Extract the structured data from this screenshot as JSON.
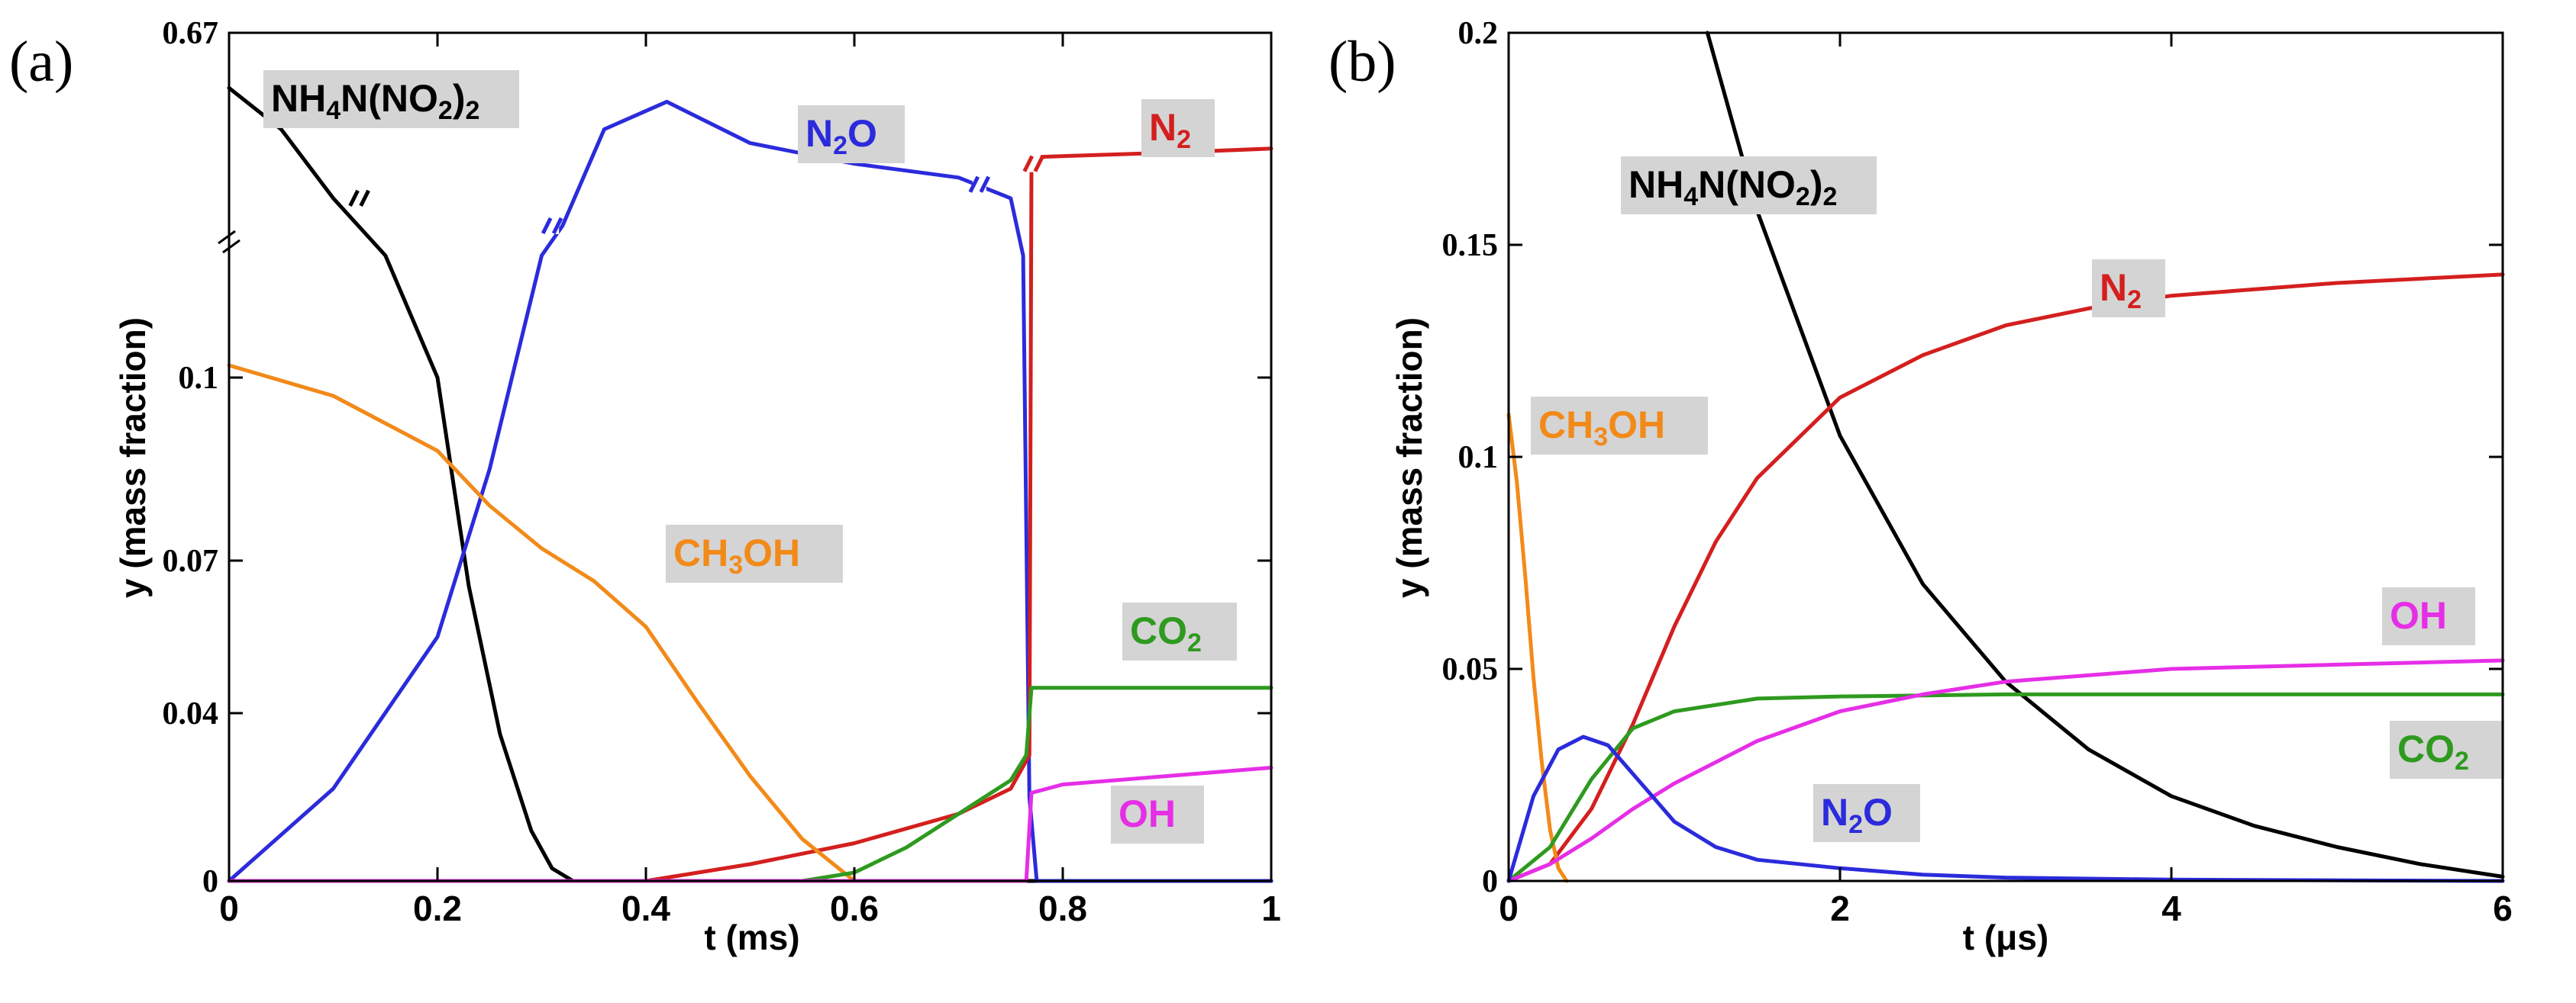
{
  "chart_data": [
    {
      "panel": "(a)",
      "type": "line",
      "xlabel": "t (ms)",
      "ylabel": "y (mass fraction)",
      "xlim": [
        0,
        1
      ],
      "x_ticks": [
        "0",
        "0.2",
        "0.4",
        "0.6",
        "0.8",
        "1"
      ],
      "y_ticks": [
        "0",
        "0.04",
        "0.07",
        "0.1",
        "0.67"
      ],
      "y_axis_note": "broken axis between 0.12 and the upper segment ending at 0.67",
      "series": [
        {
          "name": "NH4N(NO2)2",
          "label_main": "NH",
          "label_tail": "N(NO",
          "label_close": ")",
          "sub1": "4",
          "sub2": "2",
          "sub3": "2",
          "color": "#000000",
          "x": [
            0,
            0.05,
            0.1,
            0.15,
            0.2,
            0.23,
            0.26,
            0.29,
            0.31,
            0.33,
            0.35,
            1.0
          ],
          "y": [
            0.63,
            0.6,
            0.55,
            0.12,
            0.1,
            0.065,
            0.035,
            0.012,
            0.003,
            0.0,
            0.0,
            0.0
          ]
        },
        {
          "name": "N2O",
          "label_main": "N",
          "label_sub": "2",
          "label_tail": "O",
          "color": "#2b2bdc",
          "x": [
            0,
            0.1,
            0.2,
            0.25,
            0.3,
            0.32,
            0.36,
            0.42,
            0.5,
            0.6,
            0.7,
            0.75,
            0.762,
            0.768,
            0.775,
            1.0
          ],
          "y": [
            0.0,
            0.022,
            0.055,
            0.085,
            0.12,
            0.53,
            0.6,
            0.62,
            0.59,
            0.575,
            0.565,
            0.55,
            0.12,
            0.02,
            0.0,
            0.0
          ]
        },
        {
          "name": "N2",
          "label_main": "N",
          "label_sub": "2",
          "label_tail": "",
          "color": "#d41f1f",
          "x": [
            0.4,
            0.5,
            0.6,
            0.7,
            0.75,
            0.768,
            0.77,
            0.78,
            0.9,
            1.0
          ],
          "y": [
            0.0,
            0.004,
            0.009,
            0.016,
            0.022,
            0.03,
            0.575,
            0.58,
            0.583,
            0.586
          ]
        },
        {
          "name": "CH3OH",
          "label_main": "CH",
          "label_sub": "3",
          "label_tail": "OH",
          "color": "#f28a1a",
          "x": [
            0,
            0.1,
            0.2,
            0.25,
            0.3,
            0.35,
            0.4,
            0.45,
            0.5,
            0.55,
            0.6
          ],
          "y": [
            0.102,
            0.097,
            0.088,
            0.079,
            0.072,
            0.066,
            0.057,
            0.042,
            0.025,
            0.01,
            0.0
          ]
        },
        {
          "name": "CO2",
          "label_main": "CO",
          "label_sub": "2",
          "label_tail": "",
          "color": "#2e9a1f",
          "x": [
            0,
            0.55,
            0.6,
            0.65,
            0.7,
            0.75,
            0.765,
            0.77,
            0.8,
            1.0
          ],
          "y": [
            0.0,
            0.0,
            0.002,
            0.008,
            0.016,
            0.024,
            0.03,
            0.045,
            0.045,
            0.045
          ]
        },
        {
          "name": "OH",
          "label_main": "OH",
          "label_sub": "",
          "label_tail": "",
          "color": "#e62ee6",
          "x": [
            0,
            0.765,
            0.77,
            0.8,
            0.9,
            1.0
          ],
          "y": [
            0.0,
            0.0,
            0.021,
            0.023,
            0.025,
            0.027
          ]
        }
      ]
    },
    {
      "panel": "(b)",
      "type": "line",
      "xlabel": "t (μs)",
      "ylabel": "y (mass fraction)",
      "xlim": [
        0,
        6
      ],
      "ylim": [
        0,
        0.2
      ],
      "x_ticks": [
        "0",
        "2",
        "4",
        "6"
      ],
      "y_ticks": [
        "0",
        "0.05",
        "0.1",
        "0.15",
        "0.2"
      ],
      "series": [
        {
          "name": "NH4N(NO2)2",
          "label_main": "NH",
          "label_tail": "N(NO",
          "label_close": ")",
          "sub1": "4",
          "sub2": "2",
          "sub3": "2",
          "color": "#000000",
          "x": [
            1.2,
            1.5,
            2.0,
            2.5,
            3.0,
            3.5,
            4.0,
            4.5,
            5.0,
            5.5,
            6.0
          ],
          "y": [
            0.2,
            0.158,
            0.105,
            0.07,
            0.047,
            0.031,
            0.02,
            0.013,
            0.008,
            0.004,
            0.001
          ]
        },
        {
          "name": "N2",
          "label_main": "N",
          "label_sub": "2",
          "label_tail": "",
          "color": "#d41f1f",
          "x": [
            0,
            0.25,
            0.5,
            0.75,
            1.0,
            1.25,
            1.5,
            2.0,
            2.5,
            3.0,
            3.5,
            4.0,
            5.0,
            6.0
          ],
          "y": [
            0.0,
            0.004,
            0.017,
            0.037,
            0.06,
            0.08,
            0.095,
            0.114,
            0.124,
            0.131,
            0.135,
            0.138,
            0.141,
            0.143
          ]
        },
        {
          "name": "CH3OH",
          "label_main": "CH",
          "label_sub": "3",
          "label_tail": "OH",
          "color": "#f28a1a",
          "x": [
            0,
            0.05,
            0.1,
            0.15,
            0.2,
            0.25,
            0.3,
            0.35
          ],
          "y": [
            0.11,
            0.094,
            0.072,
            0.048,
            0.028,
            0.012,
            0.003,
            0.0
          ]
        },
        {
          "name": "CO2",
          "label_main": "CO",
          "label_sub": "2",
          "label_tail": "",
          "color": "#2e9a1f",
          "x": [
            0,
            0.25,
            0.5,
            0.75,
            1.0,
            1.5,
            2.0,
            3.0,
            4.0,
            5.0,
            6.0
          ],
          "y": [
            0.0,
            0.008,
            0.024,
            0.036,
            0.04,
            0.043,
            0.0435,
            0.044,
            0.044,
            0.044,
            0.044
          ]
        },
        {
          "name": "OH",
          "label_main": "OH",
          "label_sub": "",
          "label_tail": "",
          "color": "#e62ee6",
          "x": [
            0,
            0.25,
            0.5,
            0.75,
            1.0,
            1.5,
            2.0,
            2.5,
            3.0,
            4.0,
            5.0,
            6.0
          ],
          "y": [
            0.0,
            0.004,
            0.01,
            0.017,
            0.023,
            0.033,
            0.04,
            0.044,
            0.047,
            0.05,
            0.051,
            0.052
          ]
        },
        {
          "name": "N2O",
          "label_main": "N",
          "label_sub": "2",
          "label_tail": "O",
          "color": "#2b2bdc",
          "x": [
            0,
            0.15,
            0.3,
            0.45,
            0.6,
            0.8,
            1.0,
            1.25,
            1.5,
            2.0,
            2.5,
            3.0,
            4.0,
            6.0
          ],
          "y": [
            0.0,
            0.02,
            0.031,
            0.034,
            0.032,
            0.023,
            0.014,
            0.008,
            0.005,
            0.003,
            0.0015,
            0.0008,
            0.0003,
            0.0
          ]
        }
      ]
    }
  ]
}
